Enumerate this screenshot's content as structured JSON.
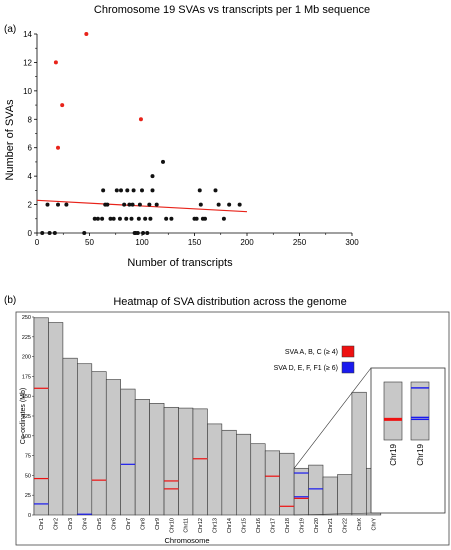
{
  "chart_data": [
    {
      "type": "scatter",
      "panel_label": "(a)",
      "title": "Chromosome 19 SVAs vs transcripts per 1 Mb sequence",
      "xlabel": "Number of transcripts",
      "ylabel": "Number of SVAs",
      "xlim": [
        0,
        300
      ],
      "ylim": [
        0,
        14
      ],
      "xticks": [
        "0",
        "50",
        "100",
        "150",
        "200",
        "250",
        "300"
      ],
      "yticks": [
        "0",
        "2",
        "4",
        "6",
        "8",
        "10",
        "12",
        "14"
      ],
      "colors": {
        "points": "#111111",
        "outliers": "#e8231a",
        "trendline": "#e8231a"
      },
      "series": [
        {
          "values": [
            [
              5,
              0
            ],
            [
              10,
              2
            ],
            [
              12,
              0
            ],
            [
              17,
              0
            ],
            [
              20,
              2
            ],
            [
              28,
              2
            ],
            [
              45,
              0
            ],
            [
              55,
              1
            ],
            [
              58,
              1
            ],
            [
              62,
              1
            ],
            [
              63,
              3
            ],
            [
              65,
              2
            ],
            [
              67,
              2
            ],
            [
              70,
              1
            ],
            [
              73,
              1
            ],
            [
              76,
              3
            ],
            [
              79,
              1
            ],
            [
              80,
              3
            ],
            [
              83,
              2
            ],
            [
              85,
              1
            ],
            [
              86,
              3
            ],
            [
              88,
              2
            ],
            [
              90,
              1
            ],
            [
              91,
              2
            ],
            [
              92,
              3
            ],
            [
              93,
              0
            ],
            [
              94,
              0
            ],
            [
              96,
              0
            ],
            [
              97,
              1
            ],
            [
              98,
              2
            ],
            [
              100,
              3
            ],
            [
              101,
              0
            ],
            [
              103,
              1
            ],
            [
              105,
              0
            ],
            [
              107,
              2
            ],
            [
              108,
              1
            ],
            [
              110,
              3
            ],
            [
              110,
              4
            ],
            [
              114,
              2
            ],
            [
              120,
              5
            ],
            [
              123,
              1
            ],
            [
              128,
              1
            ],
            [
              150,
              1
            ],
            [
              152,
              1
            ],
            [
              155,
              3
            ],
            [
              156,
              2
            ],
            [
              158,
              1
            ],
            [
              160,
              1
            ],
            [
              170,
              3
            ],
            [
              173,
              2
            ],
            [
              178,
              1
            ],
            [
              183,
              2
            ],
            [
              193,
              2
            ]
          ]
        },
        {
          "values": [
            [
              18,
              12
            ],
            [
              20,
              6
            ],
            [
              24,
              9
            ],
            [
              47,
              14
            ],
            [
              99,
              8
            ]
          ]
        }
      ],
      "trendline": {
        "x": [
          0,
          200
        ],
        "y": [
          2.3,
          1.5
        ]
      }
    },
    {
      "type": "bar",
      "panel_label": "(b)",
      "title": "Heatmap of SVA distribution across the genome",
      "xlabel": "Chromosome",
      "ylabel": "Co-ordinates (Mb)",
      "ylim": [
        0,
        250
      ],
      "yticks": [
        "0",
        "25",
        "50",
        "75",
        "100",
        "125",
        "150",
        "175",
        "200",
        "225",
        "250"
      ],
      "categories": [
        "Chr1",
        "Chr2",
        "Chr3",
        "Chr4",
        "Chr5",
        "Chr6",
        "Chr7",
        "Chr8",
        "Chr9",
        "Chr10",
        "Chr11",
        "Chr12",
        "Chr13",
        "Chr14",
        "Chr15",
        "Chr16",
        "Chr17",
        "Chr18",
        "Chr19",
        "Chr20",
        "Chr21",
        "Chr22",
        "ChrX",
        "ChrY"
      ],
      "values": [
        249,
        243,
        198,
        191,
        181,
        171,
        159,
        146,
        141,
        136,
        135,
        134,
        115,
        107,
        102,
        90,
        81,
        78,
        59,
        63,
        48,
        51,
        155,
        59
      ],
      "legend": [
        {
          "label": "SVA A, B, C (≥ 4)",
          "color": "#ee1111"
        },
        {
          "label": "SVA D, E, F, F1 (≥ 6)",
          "color": "#1a1aee"
        }
      ],
      "bar_color": "#c8c8c8",
      "hotspots": [
        {
          "chr": 0,
          "pos": 160,
          "group": "abc"
        },
        {
          "chr": 0,
          "pos": 46,
          "group": "abc"
        },
        {
          "chr": 0,
          "pos": 14,
          "group": "def"
        },
        {
          "chr": 3,
          "pos": 1,
          "group": "def"
        },
        {
          "chr": 4,
          "pos": 44,
          "group": "abc"
        },
        {
          "chr": 6,
          "pos": 64,
          "group": "def"
        },
        {
          "chr": 9,
          "pos": 43,
          "group": "abc"
        },
        {
          "chr": 9,
          "pos": 33,
          "group": "abc"
        },
        {
          "chr": 11,
          "pos": 71,
          "group": "abc"
        },
        {
          "chr": 16,
          "pos": 49,
          "group": "abc"
        },
        {
          "chr": 17,
          "pos": 11,
          "group": "abc"
        },
        {
          "chr": 18,
          "pos": 53,
          "group": "def"
        },
        {
          "chr": 18,
          "pos": 23,
          "group": "def"
        },
        {
          "chr": 18,
          "pos": 21,
          "group": "abc"
        },
        {
          "chr": 19,
          "pos": 33,
          "group": "def"
        }
      ],
      "inset": {
        "labels": [
          "Chr19",
          "Chr19"
        ],
        "marks": [
          {
            "chr": 0,
            "pos": 21,
            "group": "abc"
          },
          {
            "chr": 1,
            "pos": 53,
            "group": "def"
          },
          {
            "chr": 1,
            "pos": 23,
            "group": "def"
          },
          {
            "chr": 1,
            "pos": 21,
            "group": "def"
          }
        ]
      }
    }
  ]
}
